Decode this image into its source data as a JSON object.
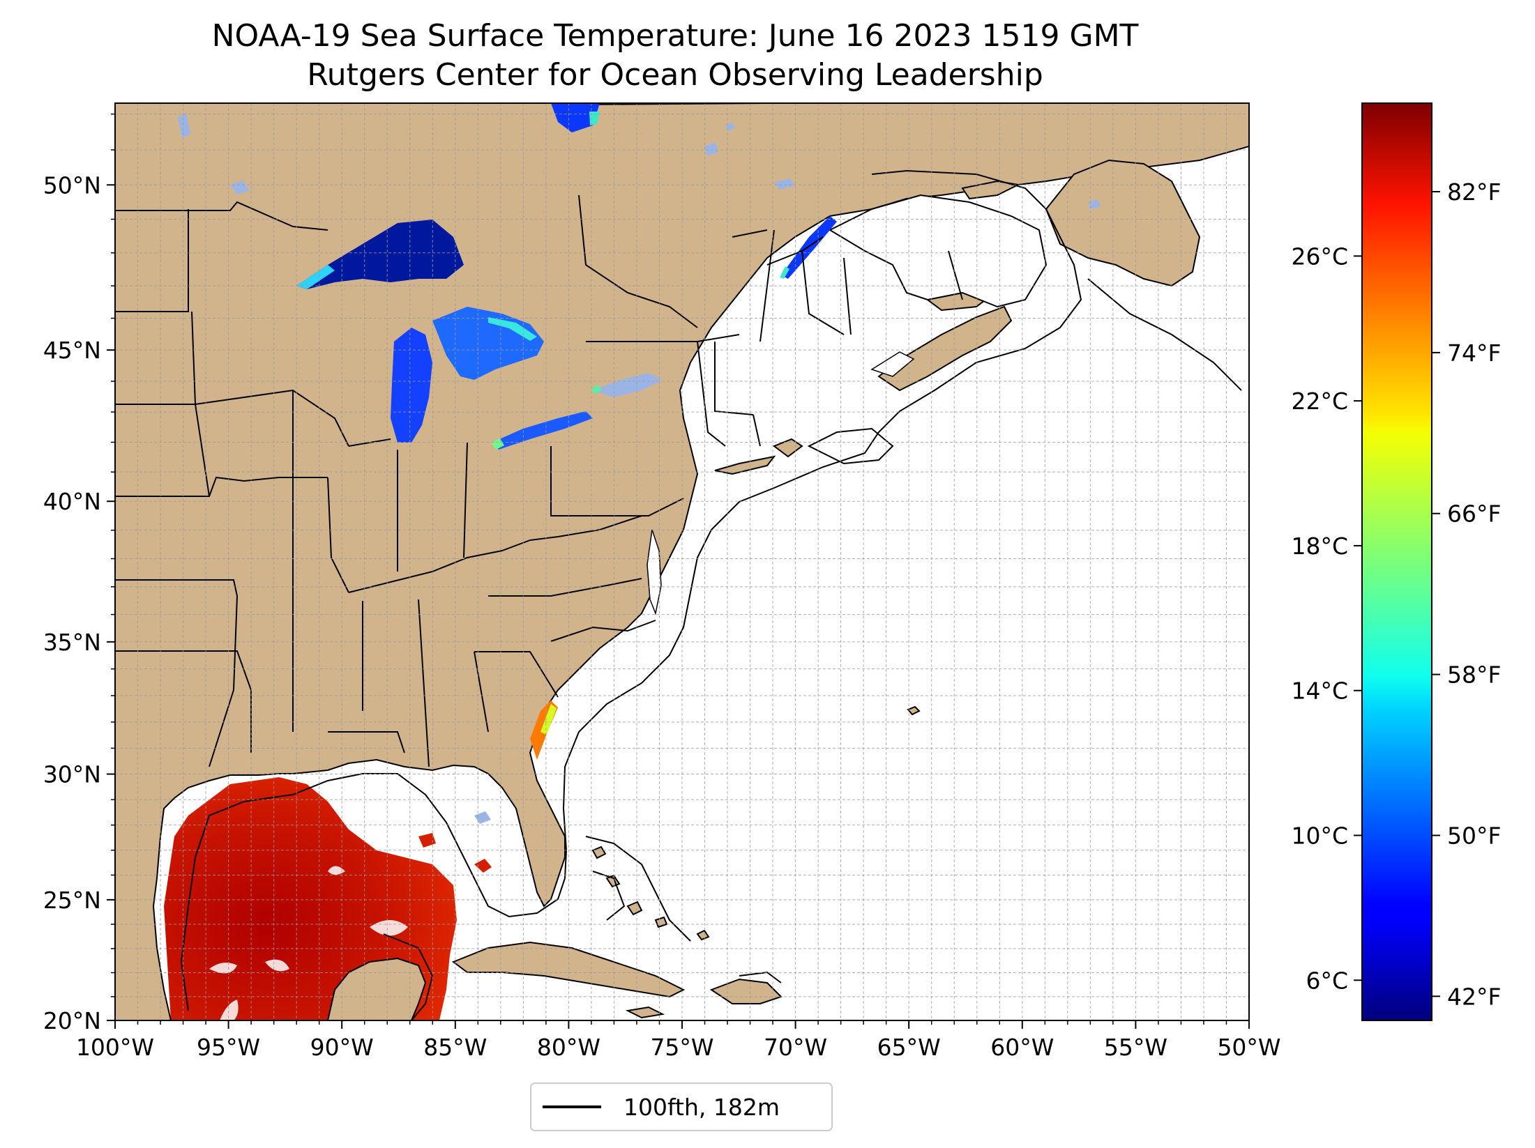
{
  "title_line1": "NOAA-19 Sea Surface Temperature: June 16 2023 1519 GMT",
  "title_line2": "Rutgers Center for Ocean Observing Leadership",
  "map": {
    "lon_range": [
      -100,
      -50
    ],
    "lat_range": [
      20,
      52.3
    ],
    "lon_ticks": [
      "100°W",
      "95°W",
      "90°W",
      "85°W",
      "80°W",
      "75°W",
      "70°W",
      "65°W",
      "60°W",
      "55°W",
      "50°W"
    ],
    "lat_ticks": [
      "20°N",
      "25°N",
      "30°N",
      "35°N",
      "40°N",
      "45°N",
      "50°N"
    ],
    "lat_tick_values": [
      20,
      25,
      30,
      35,
      40,
      45,
      50
    ],
    "lon_tick_values": [
      -100,
      -95,
      -90,
      -85,
      -80,
      -75,
      -70,
      -65,
      -60,
      -55,
      -50
    ],
    "grid_lines": "dashed",
    "land_color": "#d2b48c",
    "lake_color": "#9ab4e6",
    "ocean_color": "#ffffff"
  },
  "colorbar": {
    "colormap": "jet",
    "celsius_ticks": [
      "26°C",
      "22°C",
      "18°C",
      "14°C",
      "10°C",
      "6°C"
    ],
    "celsius_values": [
      26,
      22,
      18,
      14,
      10,
      6
    ],
    "fahrenheit_ticks": [
      "82°F",
      "74°F",
      "66°F",
      "58°F",
      "50°F",
      "42°F"
    ],
    "fahrenheit_values": [
      82,
      74,
      66,
      58,
      50,
      42
    ],
    "range_f": [
      40.8,
      86.4
    ]
  },
  "legend": {
    "label": "100fth, 182m",
    "line_color": "#000000"
  }
}
